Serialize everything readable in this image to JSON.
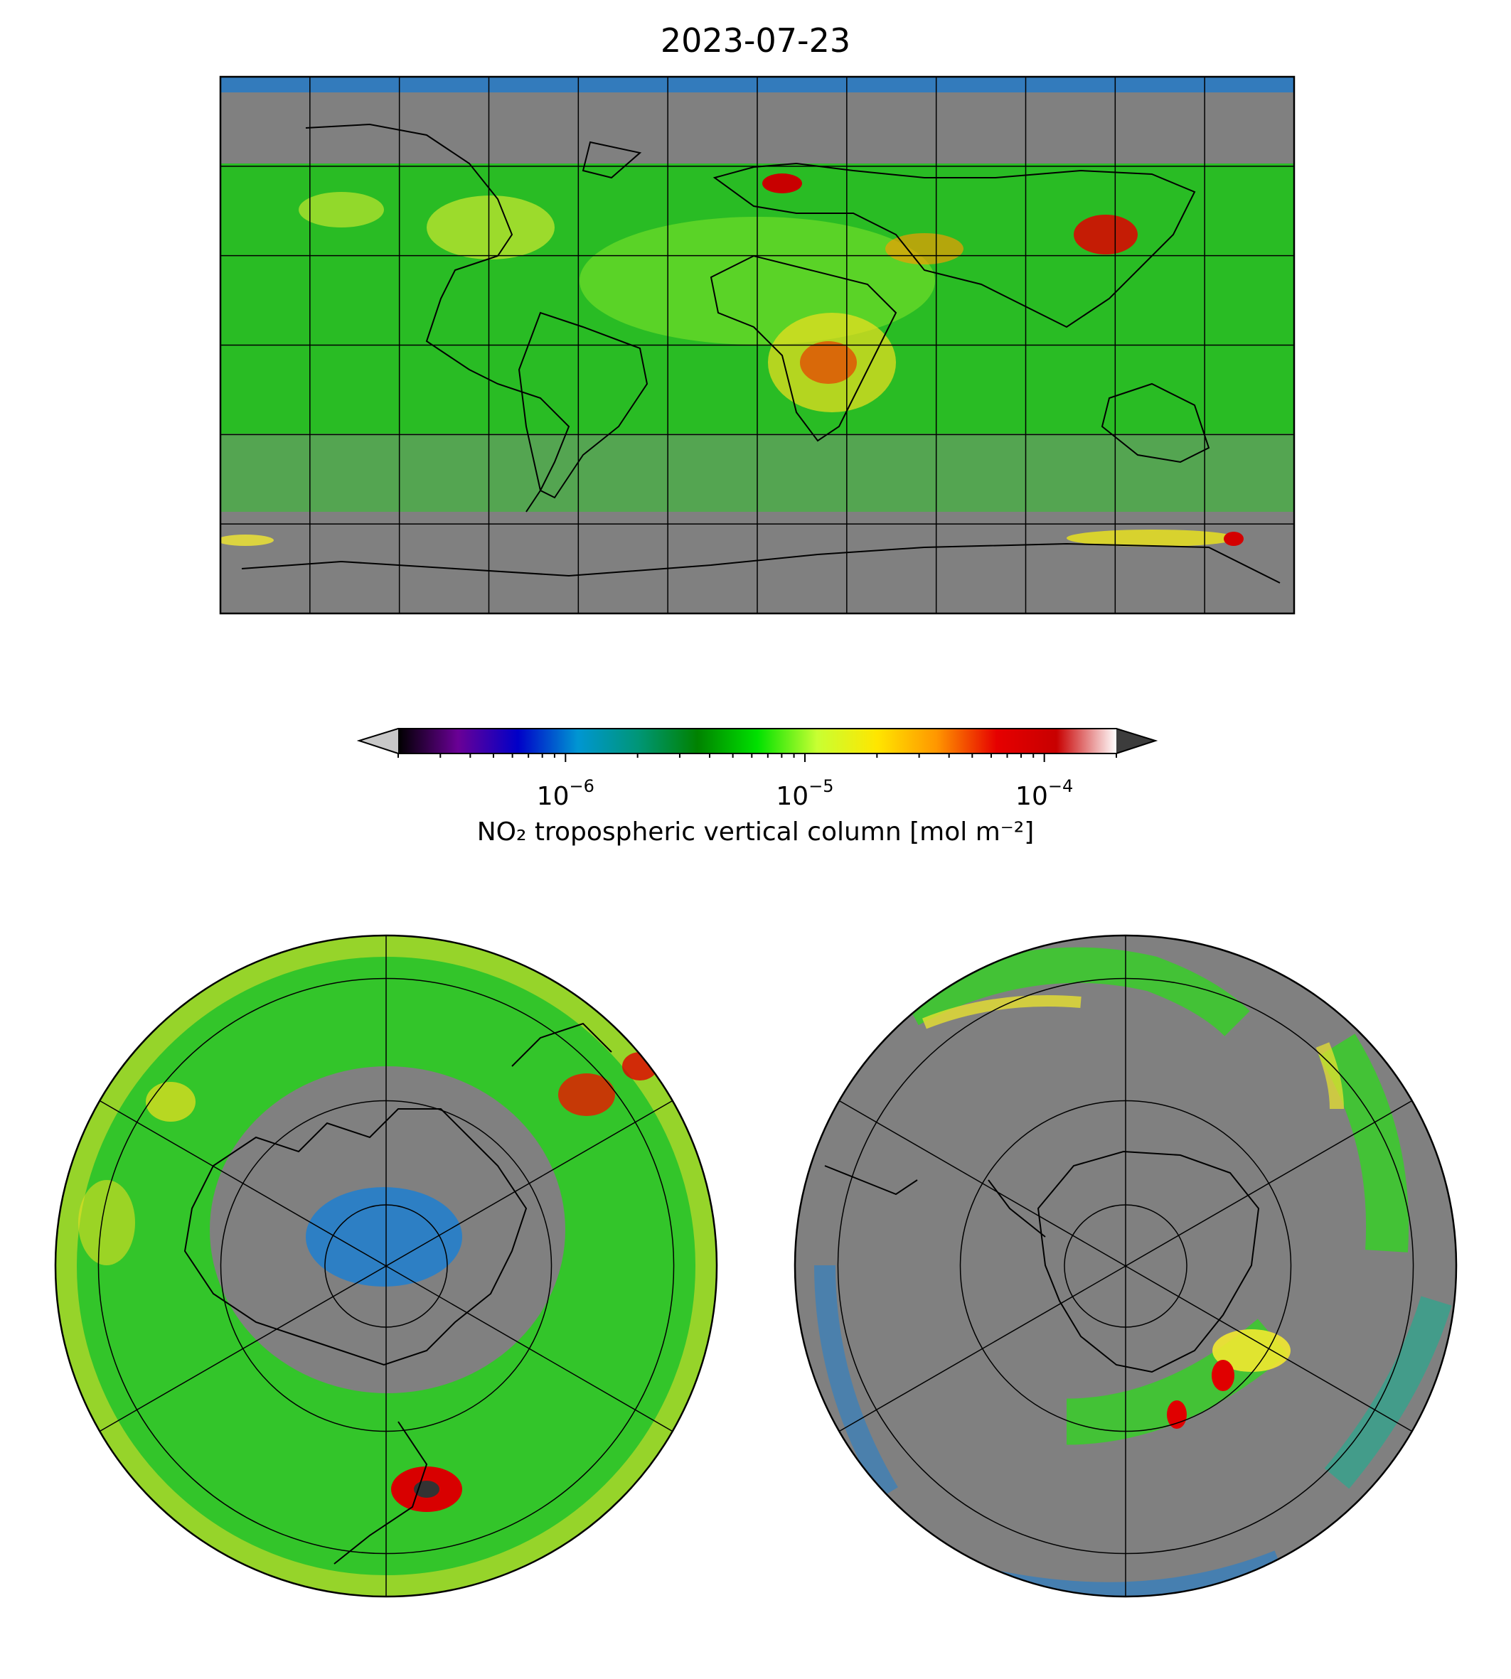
{
  "title": "2023-07-23",
  "colorbar": {
    "label": "NO₂ tropospheric vertical column [mol m⁻²]",
    "scale": "log",
    "range": [
      2e-07,
      0.0002
    ],
    "extend": "both",
    "tick_labels": [
      {
        "value": 1e-06,
        "base": "10",
        "exponent": "−6"
      },
      {
        "value": 1e-05,
        "base": "10",
        "exponent": "−5"
      },
      {
        "value": 0.0001,
        "base": "10",
        "exponent": "−4"
      }
    ],
    "colors": [
      "#000000",
      "#6a0096",
      "#0000c8",
      "#0096d2",
      "#009678",
      "#008200",
      "#00e100",
      "#c8ff32",
      "#ffe600",
      "#ff9600",
      "#e60000",
      "#c80000",
      "#ffffff"
    ],
    "under_color": "#c8c8c8",
    "over_color": "#3c3c3c"
  },
  "missing_color": "#808080",
  "panels": [
    {
      "name": "global",
      "projection": "plate-carree"
    },
    {
      "name": "north-pole",
      "projection": "north-polar-stereographic"
    },
    {
      "name": "south-pole",
      "projection": "south-polar-stereographic"
    }
  ]
}
